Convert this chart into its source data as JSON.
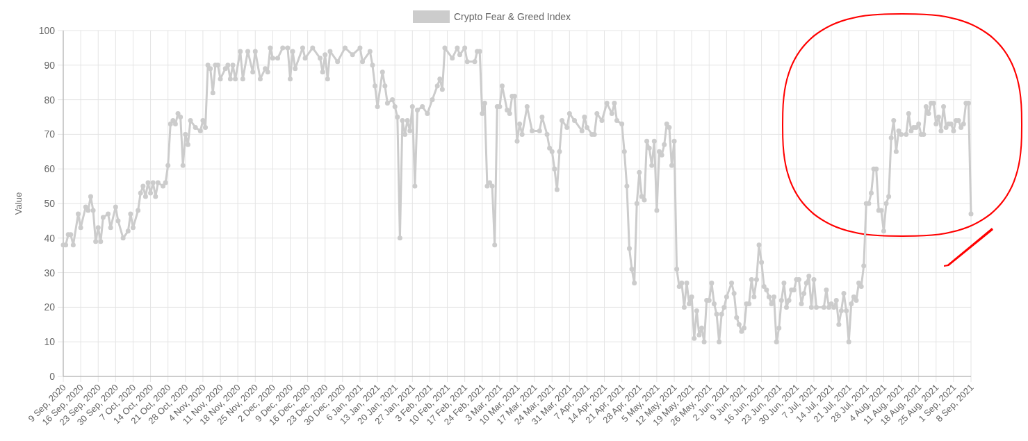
{
  "chart_data": {
    "type": "line",
    "ylabel": "Value",
    "legend": "top",
    "grid": true,
    "marker": "circle",
    "line_style": "solid",
    "xlim": [
      "2020-09-09",
      "2021-09-08"
    ],
    "xticks": [
      {
        "value": "2020-09-09",
        "label": "9 Sep, 2020"
      },
      {
        "value": "2020-09-16",
        "label": "16 Sep, 2020"
      },
      {
        "value": "2020-09-23",
        "label": "23 Sep, 2020"
      },
      {
        "value": "2020-09-30",
        "label": "30 Sep, 2020"
      },
      {
        "value": "2020-10-07",
        "label": "7 Oct, 2020"
      },
      {
        "value": "2020-10-14",
        "label": "14 Oct, 2020"
      },
      {
        "value": "2020-10-21",
        "label": "21 Oct, 2020"
      },
      {
        "value": "2020-10-28",
        "label": "28 Oct, 2020"
      },
      {
        "value": "2020-11-04",
        "label": "4 Nov, 2020"
      },
      {
        "value": "2020-11-11",
        "label": "11 Nov, 2020"
      },
      {
        "value": "2020-11-18",
        "label": "18 Nov, 2020"
      },
      {
        "value": "2020-11-25",
        "label": "25 Nov, 2020"
      },
      {
        "value": "2020-12-02",
        "label": "2 Dec, 2020"
      },
      {
        "value": "2020-12-09",
        "label": "9 Dec, 2020"
      },
      {
        "value": "2020-12-16",
        "label": "16 Dec, 2020"
      },
      {
        "value": "2020-12-23",
        "label": "23 Dec, 2020"
      },
      {
        "value": "2020-12-30",
        "label": "30 Dec, 2020"
      },
      {
        "value": "2021-01-06",
        "label": "6 Jan, 2021"
      },
      {
        "value": "2021-01-13",
        "label": "13 Jan, 2021"
      },
      {
        "value": "2021-01-20",
        "label": "20 Jan, 2021"
      },
      {
        "value": "2021-01-27",
        "label": "27 Jan, 2021"
      },
      {
        "value": "2021-02-03",
        "label": "3 Feb, 2021"
      },
      {
        "value": "2021-02-10",
        "label": "10 Feb, 2021"
      },
      {
        "value": "2021-02-17",
        "label": "17 Feb, 2021"
      },
      {
        "value": "2021-02-24",
        "label": "24 Feb, 2021"
      },
      {
        "value": "2021-03-03",
        "label": "3 Mar, 2021"
      },
      {
        "value": "2021-03-10",
        "label": "10 Mar, 2021"
      },
      {
        "value": "2021-03-17",
        "label": "17 Mar, 2021"
      },
      {
        "value": "2021-03-24",
        "label": "24 Mar, 2021"
      },
      {
        "value": "2021-03-31",
        "label": "31 Mar, 2021"
      },
      {
        "value": "2021-04-07",
        "label": "7 Apr, 2021"
      },
      {
        "value": "2021-04-14",
        "label": "14 Apr, 2021"
      },
      {
        "value": "2021-04-21",
        "label": "21 Apr, 2021"
      },
      {
        "value": "2021-04-28",
        "label": "28 Apr, 2021"
      },
      {
        "value": "2021-05-05",
        "label": "5 May, 2021"
      },
      {
        "value": "2021-05-12",
        "label": "12 May, 2021"
      },
      {
        "value": "2021-05-19",
        "label": "19 May, 2021"
      },
      {
        "value": "2021-05-26",
        "label": "26 May, 2021"
      },
      {
        "value": "2021-06-02",
        "label": "2 Jun, 2021"
      },
      {
        "value": "2021-06-09",
        "label": "9 Jun, 2021"
      },
      {
        "value": "2021-06-16",
        "label": "16 Jun, 2021"
      },
      {
        "value": "2021-06-23",
        "label": "23 Jun, 2021"
      },
      {
        "value": "2021-06-30",
        "label": "30 Jun, 2021"
      },
      {
        "value": "2021-07-07",
        "label": "7 Jul, 2021"
      },
      {
        "value": "2021-07-14",
        "label": "14 Jul, 2021"
      },
      {
        "value": "2021-07-21",
        "label": "21 Jul, 2021"
      },
      {
        "value": "2021-07-28",
        "label": "28 Jul, 2021"
      },
      {
        "value": "2021-08-04",
        "label": "4 Aug, 2021"
      },
      {
        "value": "2021-08-11",
        "label": "11 Aug, 2021"
      },
      {
        "value": "2021-08-18",
        "label": "18 Aug, 2021"
      },
      {
        "value": "2021-08-25",
        "label": "25 Aug, 2021"
      },
      {
        "value": "2021-09-01",
        "label": "1 Sep, 2021"
      },
      {
        "value": "2021-09-08",
        "label": "8 Sep, 2021"
      }
    ],
    "ylim": [
      0,
      100
    ],
    "yticks": [
      0,
      10,
      20,
      30,
      40,
      50,
      60,
      70,
      80,
      90,
      100
    ],
    "series": [
      {
        "name": "Crypto Fear & Greed Index",
        "color": "#cccccc",
        "x": [
          "2020-09-09",
          "2020-09-10",
          "2020-09-11",
          "2020-09-12",
          "2020-09-13",
          "2020-09-15",
          "2020-09-16",
          "2020-09-18",
          "2020-09-19",
          "2020-09-20",
          "2020-09-21",
          "2020-09-22",
          "2020-09-23",
          "2020-09-24",
          "2020-09-25",
          "2020-09-27",
          "2020-09-28",
          "2020-09-30",
          "2020-10-01",
          "2020-10-03",
          "2020-10-05",
          "2020-10-06",
          "2020-10-07",
          "2020-10-09",
          "2020-10-10",
          "2020-10-11",
          "2020-10-12",
          "2020-10-13",
          "2020-10-14",
          "2020-10-15",
          "2020-10-16",
          "2020-10-17",
          "2020-10-19",
          "2020-10-20",
          "2020-10-21",
          "2020-10-22",
          "2020-10-23",
          "2020-10-24",
          "2020-10-25",
          "2020-10-26",
          "2020-10-27",
          "2020-10-28",
          "2020-10-29",
          "2020-10-30",
          "2020-11-01",
          "2020-11-03",
          "2020-11-04",
          "2020-11-05",
          "2020-11-06",
          "2020-11-07",
          "2020-11-08",
          "2020-11-09",
          "2020-11-10",
          "2020-11-11",
          "2020-11-13",
          "2020-11-14",
          "2020-11-15",
          "2020-11-16",
          "2020-11-17",
          "2020-11-19",
          "2020-11-20",
          "2020-11-22",
          "2020-11-24",
          "2020-11-25",
          "2020-11-27",
          "2020-11-29",
          "2020-11-30",
          "2020-12-01",
          "2020-12-02",
          "2020-12-04",
          "2020-12-06",
          "2020-12-08",
          "2020-12-09",
          "2020-12-10",
          "2020-12-11",
          "2020-12-14",
          "2020-12-15",
          "2020-12-18",
          "2020-12-21",
          "2020-12-22",
          "2020-12-23",
          "2020-12-24",
          "2020-12-25",
          "2020-12-28",
          "2020-12-31",
          "2021-01-03",
          "2021-01-06",
          "2021-01-07",
          "2021-01-10",
          "2021-01-11",
          "2021-01-12",
          "2021-01-13",
          "2021-01-15",
          "2021-01-16",
          "2021-01-17",
          "2021-01-19",
          "2021-01-20",
          "2021-01-21",
          "2021-01-22",
          "2021-01-23",
          "2021-01-24",
          "2021-01-25",
          "2021-01-26",
          "2021-01-27",
          "2021-01-28",
          "2021-01-29",
          "2021-01-31",
          "2021-02-02",
          "2021-02-04",
          "2021-02-06",
          "2021-02-07",
          "2021-02-08",
          "2021-02-09",
          "2021-02-12",
          "2021-02-14",
          "2021-02-15",
          "2021-02-17",
          "2021-02-18",
          "2021-02-21",
          "2021-02-22",
          "2021-02-23",
          "2021-02-24",
          "2021-02-25",
          "2021-02-26",
          "2021-02-27",
          "2021-02-28",
          "2021-03-01",
          "2021-03-02",
          "2021-03-03",
          "2021-03-04",
          "2021-03-06",
          "2021-03-07",
          "2021-03-08",
          "2021-03-09",
          "2021-03-10",
          "2021-03-11",
          "2021-03-12",
          "2021-03-14",
          "2021-03-16",
          "2021-03-19",
          "2021-03-20",
          "2021-03-22",
          "2021-03-23",
          "2021-03-24",
          "2021-03-25",
          "2021-03-26",
          "2021-03-27",
          "2021-03-28",
          "2021-03-30",
          "2021-03-31",
          "2021-04-02",
          "2021-04-05",
          "2021-04-06",
          "2021-04-07",
          "2021-04-09",
          "2021-04-10",
          "2021-04-11",
          "2021-04-13",
          "2021-04-15",
          "2021-04-17",
          "2021-04-18",
          "2021-04-19",
          "2021-04-21",
          "2021-04-22",
          "2021-04-23",
          "2021-04-24",
          "2021-04-25",
          "2021-04-26",
          "2021-04-27",
          "2021-04-28",
          "2021-04-29",
          "2021-04-30",
          "2021-05-01",
          "2021-05-02",
          "2021-05-03",
          "2021-05-04",
          "2021-05-05",
          "2021-05-06",
          "2021-05-07",
          "2021-05-08",
          "2021-05-09",
          "2021-05-10",
          "2021-05-11",
          "2021-05-12",
          "2021-05-13",
          "2021-05-14",
          "2021-05-15",
          "2021-05-16",
          "2021-05-17",
          "2021-05-18",
          "2021-05-19",
          "2021-05-20",
          "2021-05-21",
          "2021-05-22",
          "2021-05-23",
          "2021-05-24",
          "2021-05-25",
          "2021-05-26",
          "2021-05-27",
          "2021-05-28",
          "2021-05-29",
          "2021-05-30",
          "2021-05-31",
          "2021-06-01",
          "2021-06-02",
          "2021-06-04",
          "2021-06-05",
          "2021-06-06",
          "2021-06-07",
          "2021-06-08",
          "2021-06-09",
          "2021-06-10",
          "2021-06-11",
          "2021-06-12",
          "2021-06-13",
          "2021-06-14",
          "2021-06-15",
          "2021-06-16",
          "2021-06-17",
          "2021-06-18",
          "2021-06-19",
          "2021-06-20",
          "2021-06-21",
          "2021-06-22",
          "2021-06-23",
          "2021-06-24",
          "2021-06-25",
          "2021-06-26",
          "2021-06-27",
          "2021-06-28",
          "2021-06-29",
          "2021-06-30",
          "2021-07-01",
          "2021-07-02",
          "2021-07-03",
          "2021-07-04",
          "2021-07-05",
          "2021-07-06",
          "2021-07-07",
          "2021-07-08",
          "2021-07-11",
          "2021-07-12",
          "2021-07-13",
          "2021-07-14",
          "2021-07-15",
          "2021-07-16",
          "2021-07-17",
          "2021-07-18",
          "2021-07-19",
          "2021-07-20",
          "2021-07-21",
          "2021-07-22",
          "2021-07-23",
          "2021-07-24",
          "2021-07-25",
          "2021-07-26",
          "2021-07-27",
          "2021-07-28",
          "2021-07-29",
          "2021-07-30",
          "2021-07-31",
          "2021-08-01",
          "2021-08-02",
          "2021-08-03",
          "2021-08-04",
          "2021-08-05",
          "2021-08-06",
          "2021-08-07",
          "2021-08-08",
          "2021-08-09",
          "2021-08-10",
          "2021-08-11",
          "2021-08-13",
          "2021-08-14",
          "2021-08-15",
          "2021-08-16",
          "2021-08-17",
          "2021-08-18",
          "2021-08-19",
          "2021-08-20",
          "2021-08-21",
          "2021-08-22",
          "2021-08-23",
          "2021-08-24",
          "2021-08-25",
          "2021-08-26",
          "2021-08-27",
          "2021-08-28",
          "2021-08-29",
          "2021-08-30",
          "2021-08-31",
          "2021-09-01",
          "2021-09-02",
          "2021-09-03",
          "2021-09-04",
          "2021-09-05",
          "2021-09-06",
          "2021-09-07",
          "2021-09-08"
        ],
        "values": [
          38,
          38,
          41,
          41,
          38,
          47,
          43,
          49,
          48,
          52,
          48,
          39,
          43,
          39,
          46,
          47,
          43,
          49,
          45,
          40,
          42,
          47,
          43,
          48,
          53,
          55,
          52,
          56,
          53,
          56,
          52,
          56,
          55,
          56,
          61,
          73,
          74,
          73,
          76,
          75,
          61,
          70,
          67,
          74,
          72,
          71,
          74,
          72,
          90,
          89,
          82,
          90,
          90,
          86,
          89,
          90,
          86,
          90,
          86,
          94,
          86,
          94,
          88,
          94,
          86,
          89,
          88,
          95,
          92,
          92,
          95,
          95,
          86,
          94,
          89,
          95,
          92,
          95,
          92,
          88,
          93,
          86,
          94,
          91,
          95,
          93,
          95,
          91,
          94,
          90,
          84,
          78,
          88,
          84,
          79,
          80,
          78,
          75,
          40,
          74,
          70,
          74,
          71,
          78,
          55,
          77,
          78,
          76,
          80,
          84,
          86,
          83,
          95,
          92,
          95,
          93,
          95,
          91,
          91,
          94,
          94,
          76,
          79,
          55,
          56,
          55,
          38,
          78,
          78,
          84,
          77,
          76,
          81,
          81,
          68,
          73,
          70,
          78,
          71,
          71,
          75,
          70,
          66,
          65,
          60,
          54,
          65,
          74,
          72,
          76,
          74,
          71,
          75,
          72,
          70,
          70,
          76,
          74,
          79,
          76,
          79,
          74,
          73,
          65,
          55,
          37,
          31,
          27,
          50,
          59,
          52,
          51,
          68,
          66,
          61,
          68,
          48,
          65,
          64,
          67,
          73,
          72,
          61,
          68,
          31,
          26,
          27,
          20,
          27,
          21,
          23,
          11,
          19,
          12,
          14,
          10,
          22,
          22,
          27,
          21,
          18,
          10,
          18,
          20,
          23,
          27,
          24,
          17,
          15,
          13,
          14,
          21,
          21,
          28,
          23,
          28,
          38,
          33,
          26,
          25,
          23,
          21,
          23,
          10,
          14,
          22,
          27,
          20,
          22,
          25,
          25,
          28,
          28,
          21,
          24,
          27,
          29,
          20,
          28,
          20,
          20,
          25,
          20,
          21,
          20,
          22,
          15,
          19,
          24,
          19,
          10,
          21,
          23,
          22,
          27,
          26,
          32,
          50,
          50,
          53,
          60,
          60,
          48,
          48,
          42,
          50,
          52,
          69,
          74,
          65,
          71,
          70,
          70,
          76,
          71,
          72,
          72,
          73,
          70,
          70,
          78,
          76,
          79,
          79,
          73,
          75,
          71,
          78,
          72,
          73,
          73,
          71,
          74,
          74,
          72,
          73,
          79,
          79,
          47
        ]
      }
    ]
  }
}
